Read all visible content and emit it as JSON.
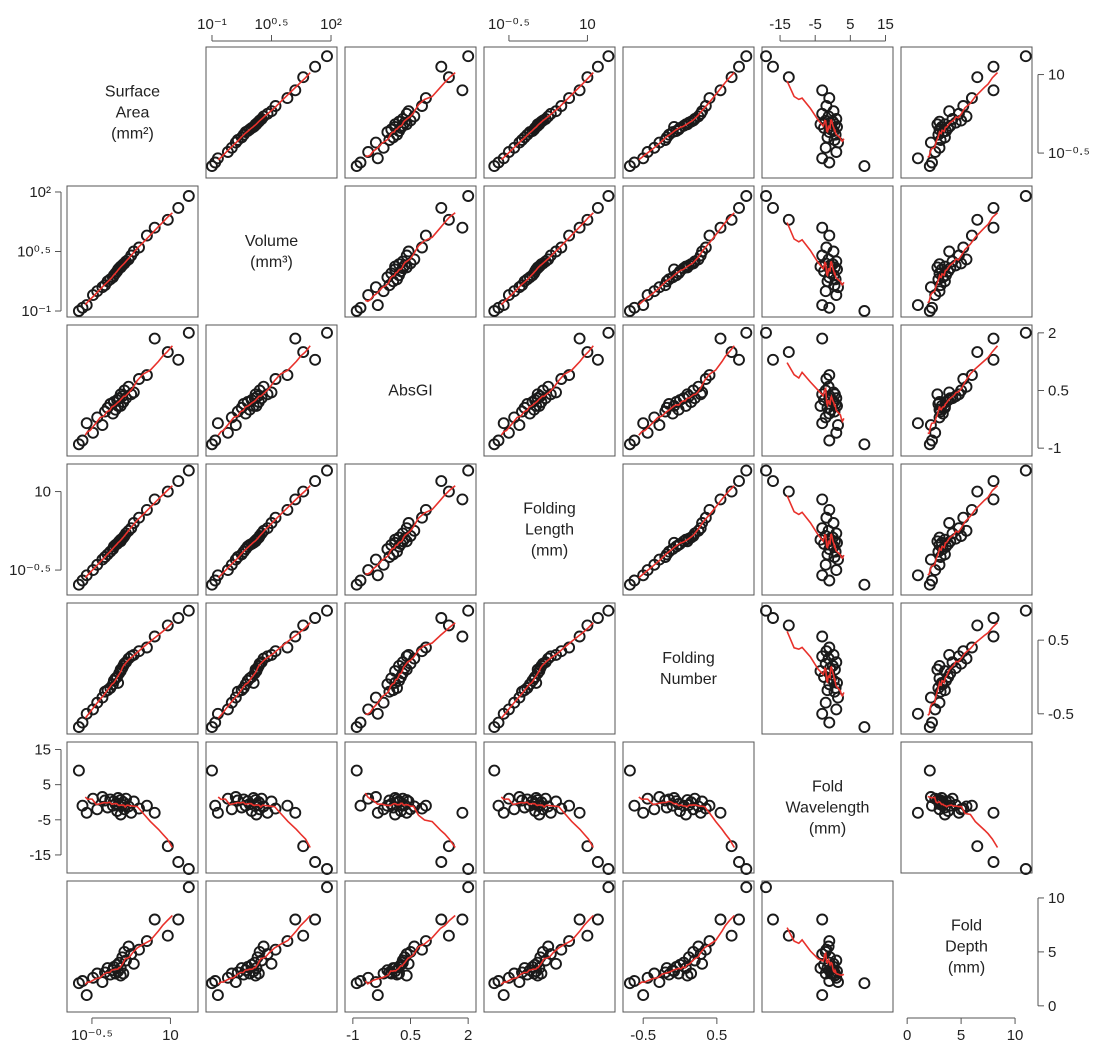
{
  "chart_data": {
    "type": "scatter",
    "kind": "scatterplot-matrix",
    "smoother_color": "#e8312b",
    "point_color": "#1a1a1a",
    "point_style": "open-circle",
    "variables": [
      {
        "id": "sa",
        "label_lines": [
          "Surface",
          "Area",
          "(mm²)"
        ],
        "scale": "log",
        "range": [
          -0.9,
          1.45
        ],
        "ticks": [
          {
            "v": -0.5,
            "label": "10⁻⁰·⁵"
          },
          {
            "v": 1,
            "label": "10"
          }
        ],
        "tick_side": "right"
      },
      {
        "id": "vol",
        "label_lines": [
          "Volume",
          "(mm³)"
        ],
        "scale": "log",
        "range": [
          -1.05,
          2.05
        ],
        "ticks": [
          {
            "v": -1,
            "label": "10⁻¹"
          },
          {
            "v": 0.5,
            "label": "10⁰·⁵"
          },
          {
            "v": 2,
            "label": "10²"
          }
        ],
        "tick_side": "top"
      },
      {
        "id": "absgi",
        "label_lines": [
          "AbsGI"
        ],
        "scale": "linear",
        "range": [
          -1.1,
          2.1
        ],
        "ticks": [
          {
            "v": -1,
            "label": "-1"
          },
          {
            "v": 0.5,
            "label": "0.5"
          },
          {
            "v": 2,
            "label": "2"
          }
        ],
        "tick_side": "right"
      },
      {
        "id": "flen",
        "label_lines": [
          "Folding",
          "Length",
          "(mm)"
        ],
        "scale": "log",
        "range": [
          -0.9,
          1.45
        ],
        "ticks": [
          {
            "v": -0.5,
            "label": "10⁻⁰·⁵"
          },
          {
            "v": 1,
            "label": "10"
          }
        ],
        "tick_side": "top"
      },
      {
        "id": "fnum",
        "label_lines": [
          "Folding",
          "Number"
        ],
        "scale": "linear",
        "range": [
          -0.72,
          0.95
        ],
        "ticks": [
          {
            "v": -0.5,
            "label": "-0.5"
          },
          {
            "v": 0.5,
            "label": "0.5"
          }
        ],
        "tick_side": "right"
      },
      {
        "id": "fwave",
        "label_lines": [
          "Fold",
          "Wavelength",
          "(mm)"
        ],
        "scale": "linear",
        "range": [
          -19,
          16
        ],
        "ticks": [
          {
            "v": -15,
            "label": "-15"
          },
          {
            "v": -5,
            "label": "-5"
          },
          {
            "v": 5,
            "label": "5"
          },
          {
            "v": 15,
            "label": "15"
          }
        ],
        "tick_side": "top"
      },
      {
        "id": "fdepth",
        "label_lines": [
          "Fold",
          "Depth",
          "(mm)"
        ],
        "scale": "linear",
        "range": [
          -0.2,
          11.2
        ],
        "ticks": [
          {
            "v": 0,
            "label": "0"
          },
          {
            "v": 5,
            "label": "5"
          },
          {
            "v": 10,
            "label": "10"
          }
        ],
        "tick_side": "right"
      }
    ],
    "observations": [
      [
        -0.75,
        -1.0,
        -0.9,
        -0.78,
        -0.68,
        9.0,
        2.1
      ],
      [
        -0.68,
        -0.92,
        -0.8,
        -0.7,
        -0.62,
        -1.0,
        2.3
      ],
      [
        -0.6,
        -0.85,
        -0.35,
        -0.6,
        -0.5,
        -3.0,
        1.0
      ],
      [
        -0.48,
        -0.6,
        -0.6,
        -0.5,
        -0.44,
        1.0,
        2.6
      ],
      [
        -0.4,
        -0.5,
        -0.2,
        -0.4,
        -0.35,
        -2.0,
        3.0
      ],
      [
        -0.3,
        -0.4,
        -0.4,
        -0.3,
        -0.28,
        1.5,
        2.2
      ],
      [
        -0.25,
        -0.35,
        -0.05,
        -0.25,
        -0.2,
        0.5,
        3.1
      ],
      [
        -0.2,
        -0.25,
        0.05,
        -0.2,
        -0.18,
        -1.5,
        3.5
      ],
      [
        -0.15,
        -0.2,
        0.15,
        -0.15,
        -0.15,
        0.8,
        2.9
      ],
      [
        -0.1,
        -0.15,
        -0.1,
        -0.1,
        -0.1,
        -1.0,
        3.3
      ],
      [
        -0.08,
        -0.1,
        0.2,
        -0.05,
        -0.05,
        0.3,
        3.6
      ],
      [
        -0.05,
        -0.05,
        0.0,
        -0.02,
        -0.02,
        -0.5,
        3.0
      ],
      [
        -0.02,
        0.0,
        0.25,
        0.0,
        0.0,
        -2.5,
        3.8
      ],
      [
        0.0,
        0.05,
        0.1,
        0.02,
        -0.08,
        1.2,
        3.2
      ],
      [
        0.02,
        0.08,
        0.3,
        0.05,
        0.05,
        -1.0,
        4.0
      ],
      [
        0.05,
        0.1,
        0.4,
        0.05,
        0.1,
        0.6,
        2.8
      ],
      [
        0.05,
        0.12,
        0.1,
        0.08,
        0.08,
        -3.5,
        3.5
      ],
      [
        0.08,
        0.15,
        0.35,
        0.1,
        0.12,
        -0.8,
        4.5
      ],
      [
        0.1,
        0.18,
        0.2,
        0.12,
        0.15,
        0.0,
        3.0
      ],
      [
        0.12,
        0.2,
        0.5,
        0.15,
        0.18,
        -2.0,
        5.0
      ],
      [
        0.15,
        0.25,
        0.3,
        0.2,
        0.2,
        1.0,
        4.2
      ],
      [
        0.2,
        0.3,
        0.6,
        0.25,
        0.25,
        -1.2,
        5.5
      ],
      [
        0.25,
        0.4,
        0.4,
        0.3,
        0.28,
        -3.0,
        4.8
      ],
      [
        0.3,
        0.5,
        0.45,
        0.4,
        0.3,
        0.2,
        3.9
      ],
      [
        0.4,
        0.6,
        0.8,
        0.5,
        0.35,
        -1.8,
        5.2
      ],
      [
        0.55,
        0.9,
        0.9,
        0.65,
        0.4,
        -1.0,
        6.0
      ],
      [
        0.7,
        1.1,
        1.85,
        0.85,
        0.55,
        -3.0,
        8.0
      ],
      [
        0.95,
        1.3,
        1.5,
        1.0,
        0.7,
        -12.5,
        6.5
      ],
      [
        1.15,
        1.6,
        1.3,
        1.2,
        0.8,
        -17.0,
        8.0
      ],
      [
        1.35,
        1.9,
        2.0,
        1.4,
        0.9,
        -19.0,
        11.0
      ]
    ]
  }
}
